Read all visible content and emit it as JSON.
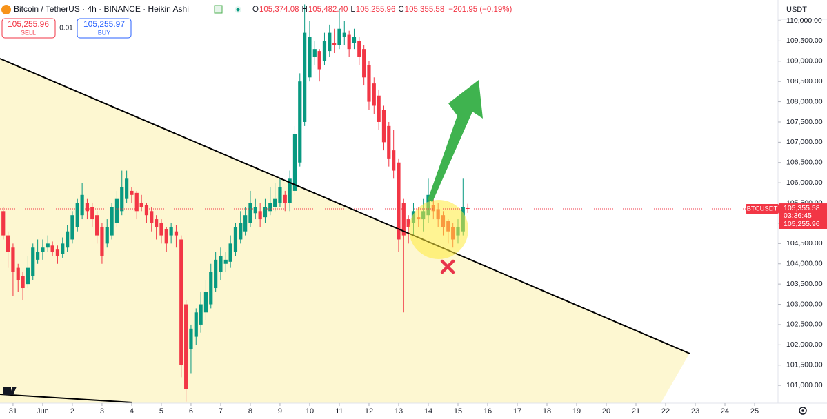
{
  "header": {
    "title": "Bitcoin / TetherUS · 4h · BINANCE · Heikin Ashi",
    "ohlc": [
      {
        "label": "O",
        "value": "105,374.08"
      },
      {
        "label": "H",
        "value": "105,482.40"
      },
      {
        "label": "L",
        "value": "105,255.96"
      },
      {
        "label": "C",
        "value": "105,355.58"
      }
    ],
    "change": "−201.95 (−0.19%)",
    "sell": {
      "price": "105,255.96",
      "label": "SELL"
    },
    "spread": "0.01",
    "buy": {
      "price": "105,255.97",
      "label": "BUY"
    },
    "currency": "USDT"
  },
  "ticker": {
    "symbol": "BTCUSDT",
    "price": "105,355.58",
    "countdown": "03:36:45",
    "bid": "105,255.96"
  },
  "chart_data": {
    "type": "candlestick",
    "up_color": "#089981",
    "down_color": "#f23645",
    "grid": false,
    "xlim": [
      -0.44,
      25.79
    ],
    "xticks": [
      {
        "value": 0,
        "label": "31"
      },
      {
        "value": 1,
        "label": "Jun"
      },
      2,
      3,
      4,
      5,
      6,
      7,
      8,
      9,
      10,
      11,
      12,
      13,
      14,
      15,
      16,
      17,
      18,
      19,
      20,
      21,
      22,
      23,
      24,
      25
    ],
    "ylim": [
      100560,
      110510
    ],
    "yticks": [
      {
        "value": 101000,
        "label": "101,000.00"
      },
      {
        "value": 101500,
        "label": "101,500.00"
      },
      {
        "value": 102000,
        "label": "102,000.00"
      },
      {
        "value": 102500,
        "label": "102,500.00"
      },
      {
        "value": 103000,
        "label": "103,000.00"
      },
      {
        "value": 103500,
        "label": "103,500.00"
      },
      {
        "value": 104000,
        "label": "104,000.00"
      },
      {
        "value": 104500,
        "label": "104,500.00"
      },
      {
        "value": 105000,
        "label": "105,000.00"
      },
      {
        "value": 105500,
        "label": "105,500.00"
      },
      {
        "value": 106000,
        "label": "106,000.00"
      },
      {
        "value": 106500,
        "label": "106,500.00"
      },
      {
        "value": 107000,
        "label": "107,000.00"
      },
      {
        "value": 107500,
        "label": "107,500.00"
      },
      {
        "value": 108000,
        "label": "108,000.00"
      },
      {
        "value": 108500,
        "label": "108,500.00"
      },
      {
        "value": 109000,
        "label": "109,000.00"
      },
      {
        "value": 109500,
        "label": "109,500.00"
      },
      {
        "value": 110000,
        "label": "110,000.00"
      }
    ],
    "x": [
      -0.33,
      -0.17,
      0,
      0.17,
      0.33,
      0.5,
      0.67,
      0.83,
      1,
      1.17,
      1.33,
      1.5,
      1.67,
      1.83,
      2,
      2.17,
      2.33,
      2.5,
      2.67,
      2.83,
      3,
      3.17,
      3.33,
      3.5,
      3.67,
      3.83,
      4,
      4.17,
      4.33,
      4.5,
      4.67,
      4.83,
      5,
      5.17,
      5.33,
      5.5,
      5.67,
      5.83,
      6,
      6.17,
      6.33,
      6.5,
      6.67,
      6.83,
      7,
      7.17,
      7.33,
      7.5,
      7.67,
      7.83,
      8,
      8.17,
      8.33,
      8.5,
      8.67,
      8.83,
      9,
      9.17,
      9.33,
      9.5,
      9.67,
      9.83,
      10,
      10.17,
      10.33,
      10.5,
      10.67,
      10.83,
      11,
      11.17,
      11.33,
      11.5,
      11.67,
      11.83,
      12,
      12.17,
      12.33,
      12.5,
      12.67,
      12.83,
      13,
      13.17,
      13.33,
      13.5,
      13.67,
      13.83,
      14,
      14.17,
      14.33,
      14.5,
      14.67,
      14.83,
      15,
      15.17,
      15.33
    ],
    "open": [
      105300,
      104700,
      104400,
      103900,
      103700,
      103500,
      103700,
      104100,
      104300,
      104400,
      104450,
      104350,
      104250,
      104400,
      104600,
      104900,
      105200,
      105500,
      105400,
      105200,
      104900,
      104500,
      104700,
      105000,
      105300,
      105600,
      105800,
      105750,
      105500,
      105450,
      105300,
      105100,
      105000,
      104850,
      104700,
      104800,
      104600,
      103000,
      101900,
      102200,
      102500,
      102800,
      103000,
      103400,
      103800,
      104000,
      104050,
      104300,
      104600,
      104800,
      105000,
      105250,
      105300,
      105150,
      105300,
      105400,
      105500,
      105700,
      105500,
      105800,
      106500,
      107500,
      108600,
      109100,
      109250,
      109000,
      109250,
      109450,
      109400,
      109600,
      109650,
      109450,
      109500,
      109300,
      108900,
      108450,
      108150,
      107800,
      107400,
      106800,
      106500,
      105500,
      105100,
      105000,
      105150,
      105100,
      105200,
      105450,
      105350,
      105200,
      105050,
      104900,
      104700,
      104800,
      105374.08
    ],
    "high": [
      105400,
      104800,
      104500,
      104000,
      103800,
      104200,
      104500,
      104600,
      104600,
      104700,
      104550,
      104450,
      104650,
      104950,
      105300,
      105600,
      106000,
      105600,
      105500,
      105300,
      105000,
      105100,
      105500,
      105800,
      106300,
      106300,
      105900,
      105800,
      105700,
      105500,
      105400,
      105200,
      105100,
      104900,
      105000,
      104950,
      104700,
      103100,
      102500,
      102900,
      103300,
      103600,
      104000,
      104300,
      104400,
      104300,
      104700,
      105000,
      105300,
      105400,
      105800,
      105600,
      105500,
      105600,
      105900,
      106000,
      106100,
      105800,
      106300,
      107400,
      108700,
      110400,
      110000,
      109500,
      109300,
      109700,
      109900,
      109800,
      110300,
      110000,
      109750,
      109800,
      109600,
      109400,
      109000,
      108600,
      108300,
      107900,
      107500,
      107300,
      106600,
      105600,
      105200,
      105500,
      105400,
      105600,
      106100,
      105700,
      105500,
      105300,
      105100,
      105000,
      105100,
      106100,
      105482.4
    ],
    "low": [
      104600,
      103900,
      103200,
      103300,
      103100,
      103400,
      103600,
      104000,
      104100,
      104300,
      104200,
      104000,
      104150,
      104300,
      104500,
      104800,
      105100,
      105100,
      104900,
      104500,
      104000,
      104400,
      104600,
      104900,
      105200,
      105500,
      105500,
      105100,
      105300,
      105000,
      104800,
      104600,
      104500,
      104300,
      104500,
      104400,
      101200,
      100600,
      101300,
      102000,
      102300,
      102600,
      102900,
      103300,
      103600,
      103800,
      103900,
      104200,
      104500,
      104700,
      104900,
      105100,
      104900,
      105000,
      105200,
      105300,
      105400,
      105300,
      105300,
      105700,
      106400,
      107400,
      108500,
      108900,
      108500,
      108900,
      109100,
      109200,
      109300,
      109400,
      109100,
      109300,
      108900,
      108400,
      107800,
      107700,
      107300,
      106800,
      106400,
      106100,
      104300,
      102800,
      104500,
      104700,
      104900,
      104800,
      105000,
      105100,
      104900,
      104700,
      104500,
      104400,
      104500,
      104700,
      105255.96
    ],
    "close": [
      104700,
      104300,
      103800,
      103600,
      103400,
      103900,
      104400,
      104300,
      104400,
      104500,
      104300,
      104200,
      104500,
      104800,
      105200,
      105500,
      105700,
      105300,
      105100,
      104700,
      104200,
      104900,
      105400,
      105600,
      105900,
      106100,
      105700,
      105300,
      105400,
      105200,
      105000,
      104900,
      104700,
      104500,
      104900,
      104700,
      101500,
      100900,
      102400,
      102800,
      103000,
      103300,
      103800,
      104100,
      104200,
      104100,
      104500,
      104900,
      105000,
      105200,
      105500,
      105400,
      105100,
      105400,
      105500,
      105600,
      105900,
      105500,
      106100,
      107200,
      108500,
      109700,
      109600,
      109300,
      108800,
      109500,
      109700,
      109400,
      109800,
      109700,
      109300,
      109600,
      109100,
      108600,
      108000,
      107900,
      107500,
      107000,
      106600,
      106300,
      104600,
      104700,
      104900,
      105300,
      105100,
      105300,
      105700,
      105300,
      105100,
      104900,
      104800,
      104600,
      104900,
      105400,
      105355.58
    ]
  }
}
